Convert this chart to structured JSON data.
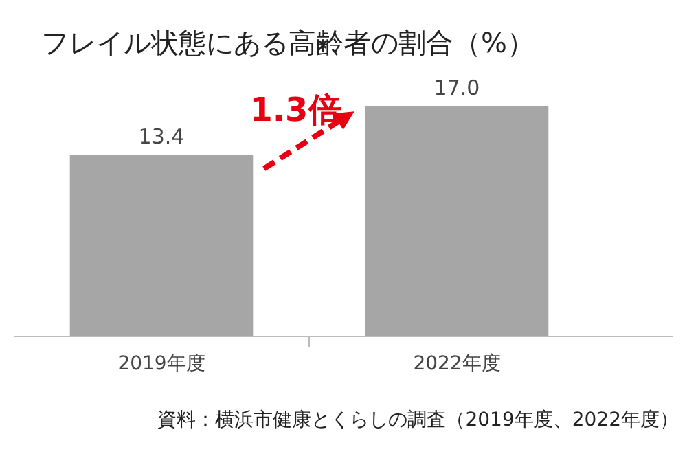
{
  "chart_data": {
    "type": "bar",
    "title": "フレイル状態にある高齢者の割合（%）",
    "categories": [
      "2019年度",
      "2022年度"
    ],
    "values": [
      13.4,
      17.0
    ],
    "value_labels": [
      "13.4",
      "17.0"
    ],
    "color": "#a6a6a6",
    "annotations": [
      "1.3倍",
      "資料：横浜市健康とくらしの調査（2019年度、2022年度）"
    ]
  }
}
